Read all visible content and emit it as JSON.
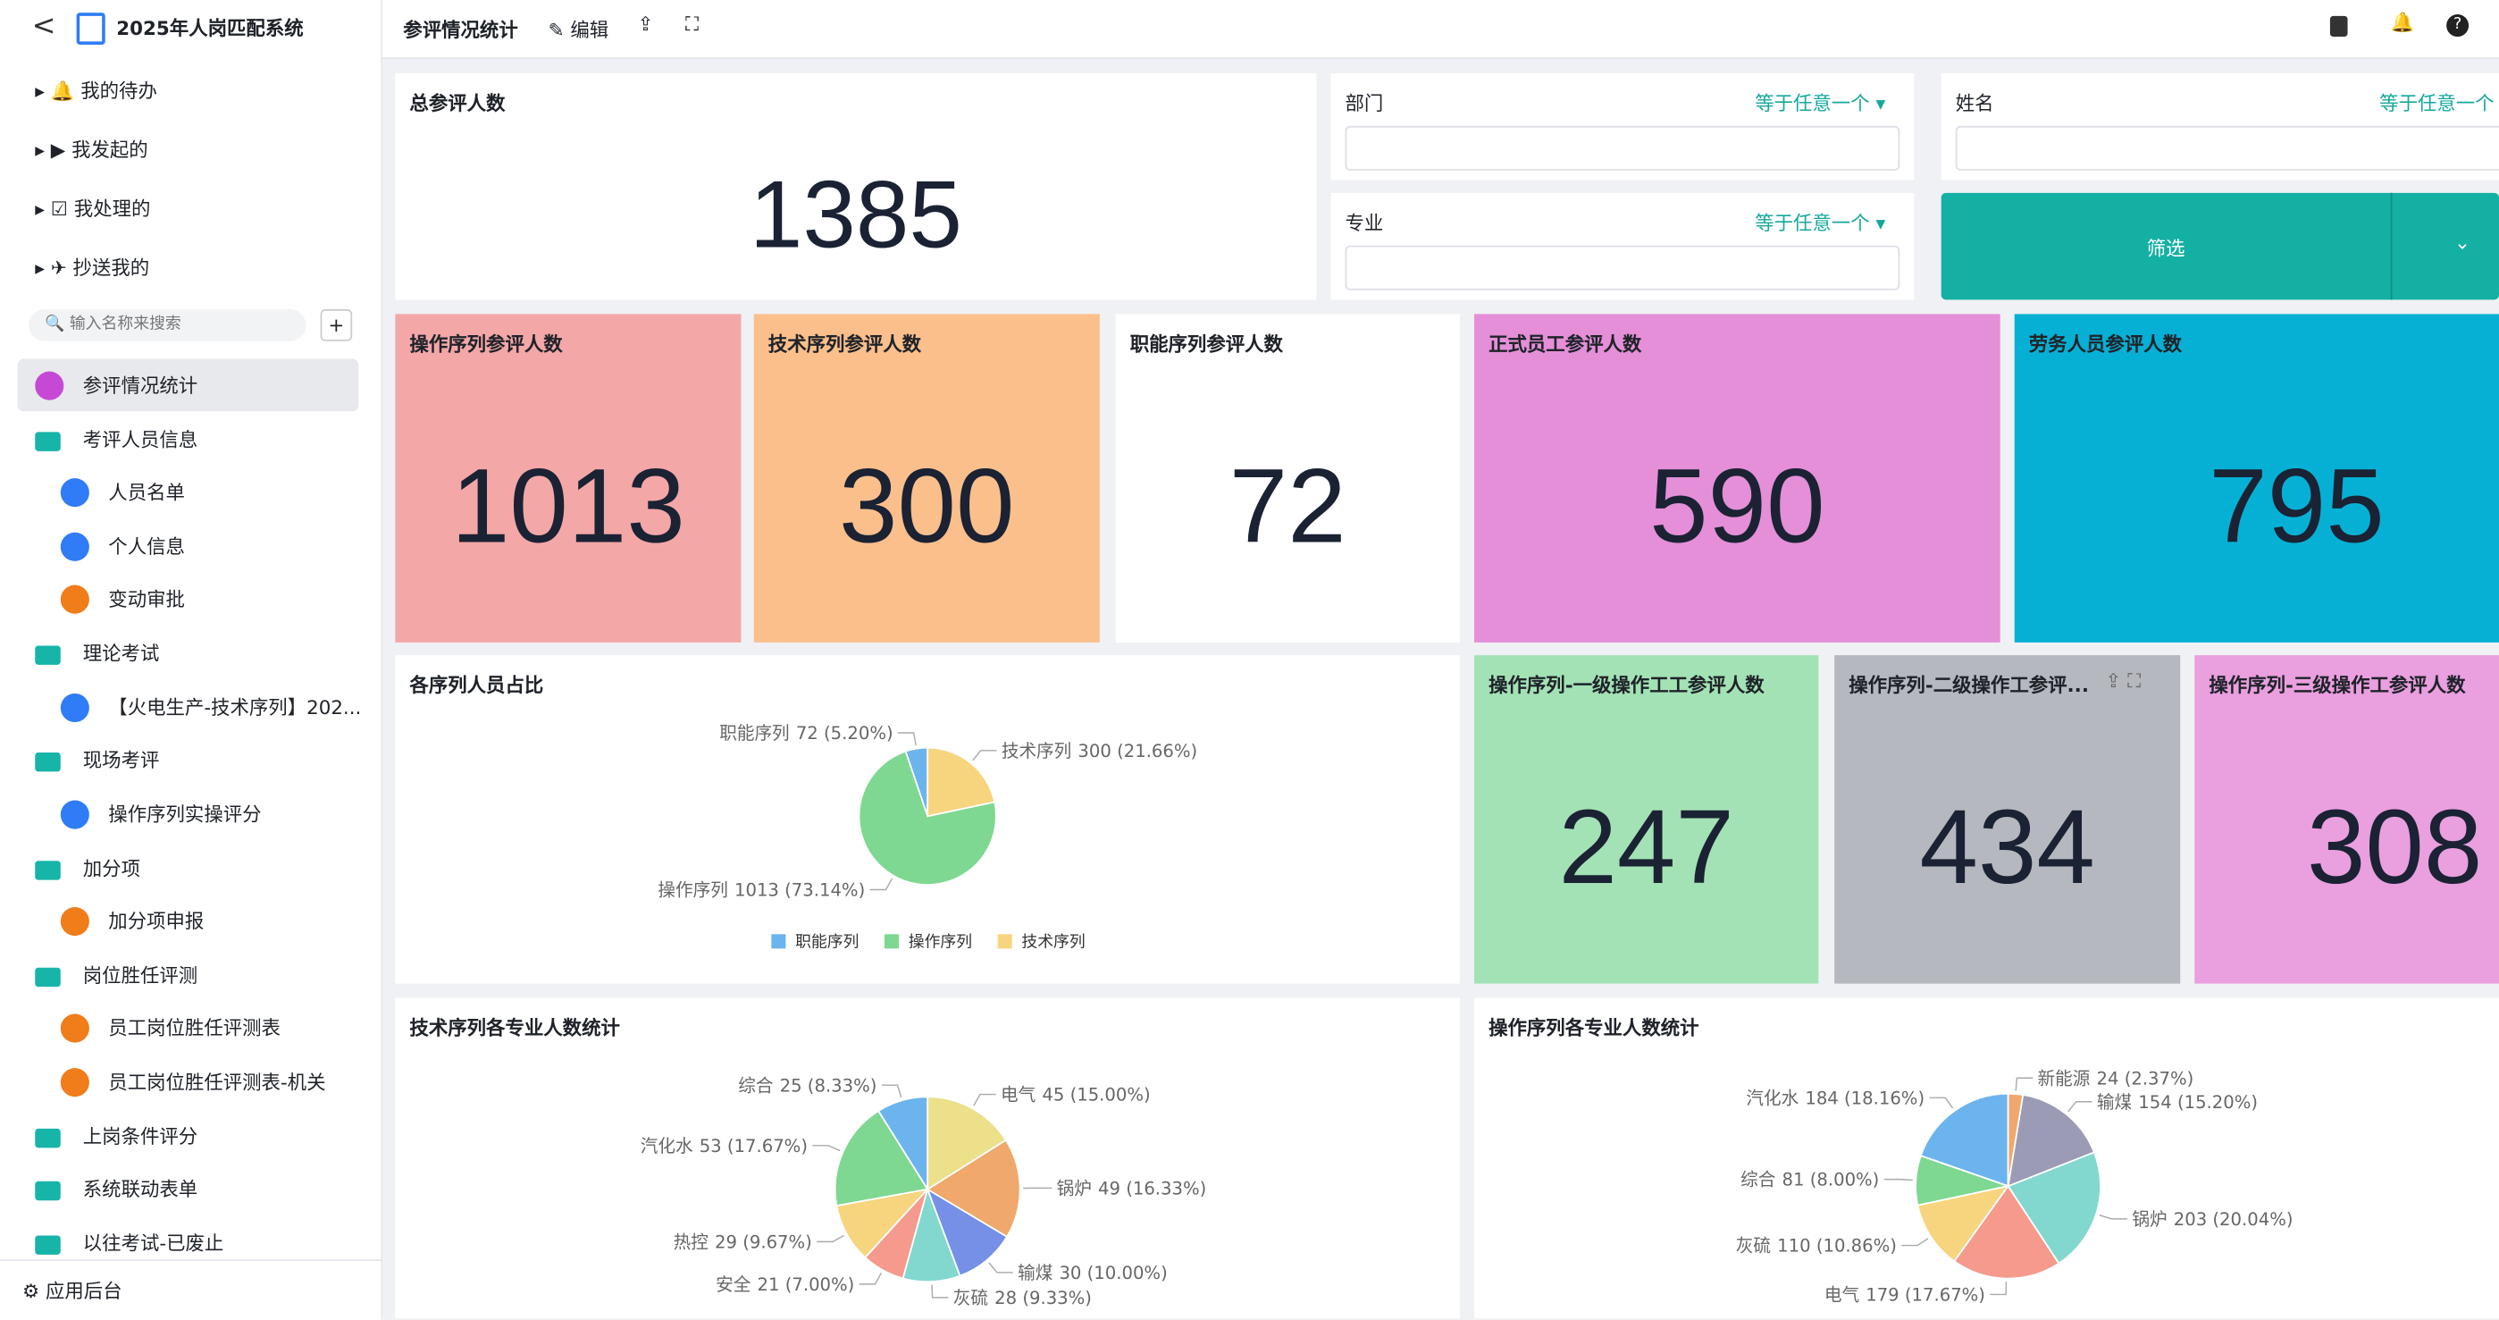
{
  "app": {
    "title": "2025年人岗匹配系统"
  },
  "sidebar": {
    "menu": [
      "我的待办",
      "我发起的",
      "我处理的",
      "抄送我的"
    ],
    "search_placeholder": "输入名称来搜索",
    "tree": [
      "参评情况统计",
      "考评人员信息",
      "人员名单",
      "个人信息",
      "变动审批",
      "理论考试",
      "【火电生产-技术序列】202...",
      "现场考评",
      "操作序列实操评分",
      "加分项",
      "加分项申报",
      "岗位胜任评测",
      "员工岗位胜任评测表",
      "员工岗位胜任评测表-机关",
      "上岗条件评分",
      "系统联动表单",
      "以往考试-已废止"
    ],
    "footer": "应用后台"
  },
  "toolbar": {
    "title": "参评情况统计",
    "edit": "编辑"
  },
  "filters": [
    {
      "label": "部门",
      "operator": "等于任意一个"
    },
    {
      "label": "专业",
      "operator": "等于任意一个"
    },
    {
      "label": "姓名",
      "operator": "等于任意一个"
    }
  ],
  "filter_button": "筛选",
  "cards": [
    {
      "title": "总参评人数",
      "value": 1385
    },
    {
      "title": "操作序列参评人数",
      "value": 1013
    },
    {
      "title": "技术序列参评人数",
      "value": 300
    },
    {
      "title": "职能序列参评人数",
      "value": 72
    },
    {
      "title": "正式员工参评人数",
      "value": 590
    },
    {
      "title": "劳务人员参评人数",
      "value": 795
    },
    {
      "title": "操作序列-一级操作工工参评人数",
      "value": 247
    },
    {
      "title": "操作序列-二级操作工参评...",
      "value": 434
    },
    {
      "title": "操作序列-三级操作工参评人数",
      "value": 308
    }
  ],
  "charts": [
    {
      "title": "各序列人员占比",
      "legend": true,
      "slices": [
        {
          "name": "职能序列",
          "value": 72,
          "label": "72 (5.20%)",
          "color": "#6cb4ee"
        },
        {
          "name": "操作序列",
          "value": 1013,
          "label": "1013 (73.14%)",
          "color": "#7ed891"
        },
        {
          "name": "技术序列",
          "value": 300,
          "label": "300 (21.66%)",
          "color": "#f7d57e"
        }
      ]
    },
    {
      "title": "技术序列各专业人数统计",
      "legend": false,
      "slices": [
        {
          "name": "综合",
          "value": 25,
          "label": "25 (8.33%)",
          "color": "#6cb4ee"
        },
        {
          "name": "汽化水",
          "value": 53,
          "label": "53 (17.67%)",
          "color": "#7ed891"
        },
        {
          "name": "热控",
          "value": 29,
          "label": "29 (9.67%)",
          "color": "#f7d57e"
        },
        {
          "name": "安全",
          "value": 21,
          "label": "21 (7.00%)",
          "color": "#f59a8c"
        },
        {
          "name": "灰硫",
          "value": 28,
          "label": "28 (9.33%)",
          "color": "#82d8cf"
        },
        {
          "name": "输煤",
          "value": 30,
          "label": "30 (10.00%)",
          "color": "#7590e6"
        },
        {
          "name": "锅炉",
          "value": 49,
          "label": "49 (16.33%)",
          "color": "#f0a86c"
        },
        {
          "name": "电气",
          "value": 45,
          "label": "45 (15.00%)",
          "color": "#ece08a"
        }
      ]
    },
    {
      "title": "操作序列各专业人数统计",
      "legend": false,
      "slices": [
        {
          "name": "汽化水",
          "value": 184,
          "label": "184 (18.16%)",
          "color": "#6cb4ee"
        },
        {
          "name": "综合",
          "value": 81,
          "label": "81 (8.00%)",
          "color": "#7ed891"
        },
        {
          "name": "灰硫",
          "value": 110,
          "label": "110 (10.86%)",
          "color": "#f7d57e"
        },
        {
          "name": "电气",
          "value": 179,
          "label": "179 (17.67%)",
          "color": "#f59a8c"
        },
        {
          "name": "锅炉",
          "value": 203,
          "label": "203 (20.04%)",
          "color": "#82d8cf"
        },
        {
          "name": "输煤",
          "value": 154,
          "label": "154 (15.20%)",
          "color": "#9b9bb5"
        },
        {
          "name": "新能源",
          "value": 24,
          "label": "24 (2.37%)",
          "color": "#f0a86c"
        }
      ]
    }
  ]
}
